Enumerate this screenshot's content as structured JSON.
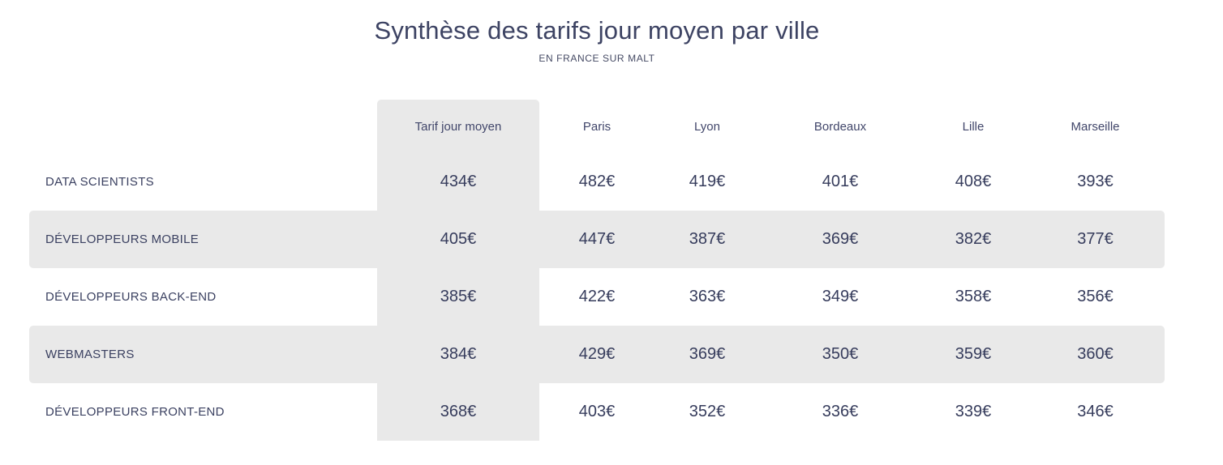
{
  "title": "Synthèse des tarifs jour moyen par ville",
  "subtitle": "EN FRANCE SUR MALT",
  "colors": {
    "background": "#ffffff",
    "text_navy": "#3b4161",
    "stripe_gray": "#e9e9e9",
    "highlight_column_gray": "#e9e9e9"
  },
  "chart_data": {
    "type": "table",
    "title": "Synthèse des tarifs jour moyen par ville",
    "subtitle": "EN FRANCE SUR MALT",
    "columns": [
      "Tarif jour moyen",
      "Paris",
      "Lyon",
      "Bordeaux",
      "Lille",
      "Marseille"
    ],
    "highlighted_column": "Tarif jour moyen",
    "unit": "€",
    "rows": [
      {
        "label": "DATA SCIENTISTS",
        "values": [
          "434€",
          "482€",
          "419€",
          "401€",
          "408€",
          "393€"
        ]
      },
      {
        "label": "DÉVELOPPEURS MOBILE",
        "values": [
          "405€",
          "447€",
          "387€",
          "369€",
          "382€",
          "377€"
        ]
      },
      {
        "label": "DÉVELOPPEURS BACK-END",
        "values": [
          "385€",
          "422€",
          "363€",
          "349€",
          "358€",
          "356€"
        ]
      },
      {
        "label": "WEBMASTERS",
        "values": [
          "384€",
          "429€",
          "369€",
          "350€",
          "359€",
          "360€"
        ]
      },
      {
        "label": "DÉVELOPPEURS FRONT-END",
        "values": [
          "368€",
          "403€",
          "352€",
          "336€",
          "339€",
          "346€"
        ]
      }
    ]
  }
}
